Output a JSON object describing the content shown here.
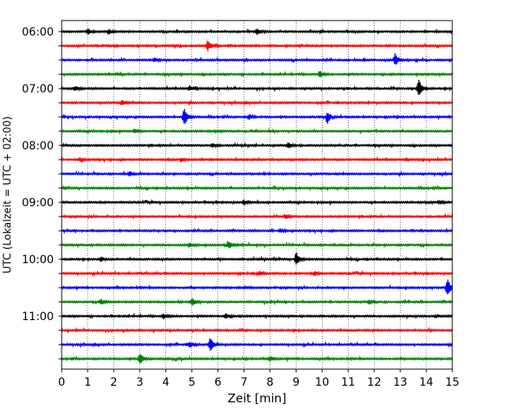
{
  "chart_data": {
    "type": "line",
    "title": "",
    "xlabel": "Zeit  [min]",
    "ylabel": "UTC (Lokalzeit = UTC + 02:00)",
    "xlim": [
      0,
      15
    ],
    "x_ticks": [
      0,
      1,
      2,
      3,
      4,
      5,
      6,
      7,
      8,
      9,
      10,
      11,
      12,
      13,
      14,
      15
    ],
    "x_tick_labels": [
      "0",
      "1",
      "2",
      "3",
      "4",
      "5",
      "6",
      "7",
      "8",
      "9",
      "10",
      "11",
      "12",
      "13",
      "14",
      "15"
    ],
    "y_tick_labels": [
      "06:00",
      "07:00",
      "08:00",
      "09:00",
      "10:00",
      "11:00"
    ],
    "grid": "vertical dotted at each minute",
    "trace_colors": [
      "#000000",
      "#ff0000",
      "#0000ff",
      "#008000"
    ],
    "series": [
      {
        "start": "06:00",
        "events": [
          [
            1.0,
            0.4
          ],
          [
            1.8,
            0.3
          ],
          [
            7.5,
            0.4
          ]
        ]
      },
      {
        "start": "06:15",
        "events": [
          [
            5.6,
            0.75
          ]
        ]
      },
      {
        "start": "06:30",
        "events": [
          [
            12.8,
            0.9
          ],
          [
            3.6,
            0.25
          ]
        ]
      },
      {
        "start": "06:45",
        "events": [
          [
            9.9,
            0.45
          ]
        ]
      },
      {
        "start": "07:00",
        "events": [
          [
            13.7,
            1.3
          ],
          [
            0.5,
            0.3
          ],
          [
            4.9,
            0.35
          ]
        ]
      },
      {
        "start": "07:15",
        "events": [
          [
            2.3,
            0.4
          ]
        ]
      },
      {
        "start": "07:30",
        "events": [
          [
            4.7,
            1.35
          ],
          [
            10.2,
            0.75
          ],
          [
            7.2,
            0.35
          ]
        ]
      },
      {
        "start": "07:45",
        "events": [
          [
            2.8,
            0.3
          ]
        ]
      },
      {
        "start": "08:00",
        "events": [
          [
            8.7,
            0.45
          ],
          [
            5.8,
            0.3
          ]
        ]
      },
      {
        "start": "08:15",
        "events": [
          [
            0.7,
            0.25
          ],
          [
            4.6,
            0.25
          ]
        ]
      },
      {
        "start": "08:30",
        "events": [
          [
            2.6,
            0.3
          ]
        ]
      },
      {
        "start": "08:45",
        "events": []
      },
      {
        "start": "09:00",
        "events": [
          [
            14.5,
            0.3
          ],
          [
            7.0,
            0.3
          ]
        ]
      },
      {
        "start": "09:15",
        "events": [
          [
            8.6,
            0.3
          ]
        ]
      },
      {
        "start": "09:30",
        "events": [
          [
            8.4,
            0.3
          ]
        ]
      },
      {
        "start": "09:45",
        "events": [
          [
            6.4,
            0.5
          ],
          [
            4.9,
            0.3
          ]
        ]
      },
      {
        "start": "10:00",
        "events": [
          [
            9.0,
            1.0
          ],
          [
            1.5,
            0.3
          ]
        ]
      },
      {
        "start": "10:15",
        "events": [
          [
            7.6,
            0.3
          ],
          [
            9.7,
            0.3
          ]
        ]
      },
      {
        "start": "10:30",
        "events": [
          [
            14.8,
            1.3
          ]
        ]
      },
      {
        "start": "10:45",
        "events": [
          [
            5.0,
            0.5
          ],
          [
            1.5,
            0.35
          ],
          [
            11.8,
            0.3
          ]
        ]
      },
      {
        "start": "11:00",
        "events": [
          [
            3.9,
            0.4
          ],
          [
            6.3,
            0.35
          ]
        ]
      },
      {
        "start": "11:15",
        "events": []
      },
      {
        "start": "11:30",
        "events": [
          [
            5.7,
            1.05
          ],
          [
            4.9,
            0.45
          ]
        ]
      },
      {
        "start": "11:45",
        "events": [
          [
            3.0,
            0.85
          ],
          [
            8.0,
            0.35
          ]
        ]
      }
    ]
  }
}
